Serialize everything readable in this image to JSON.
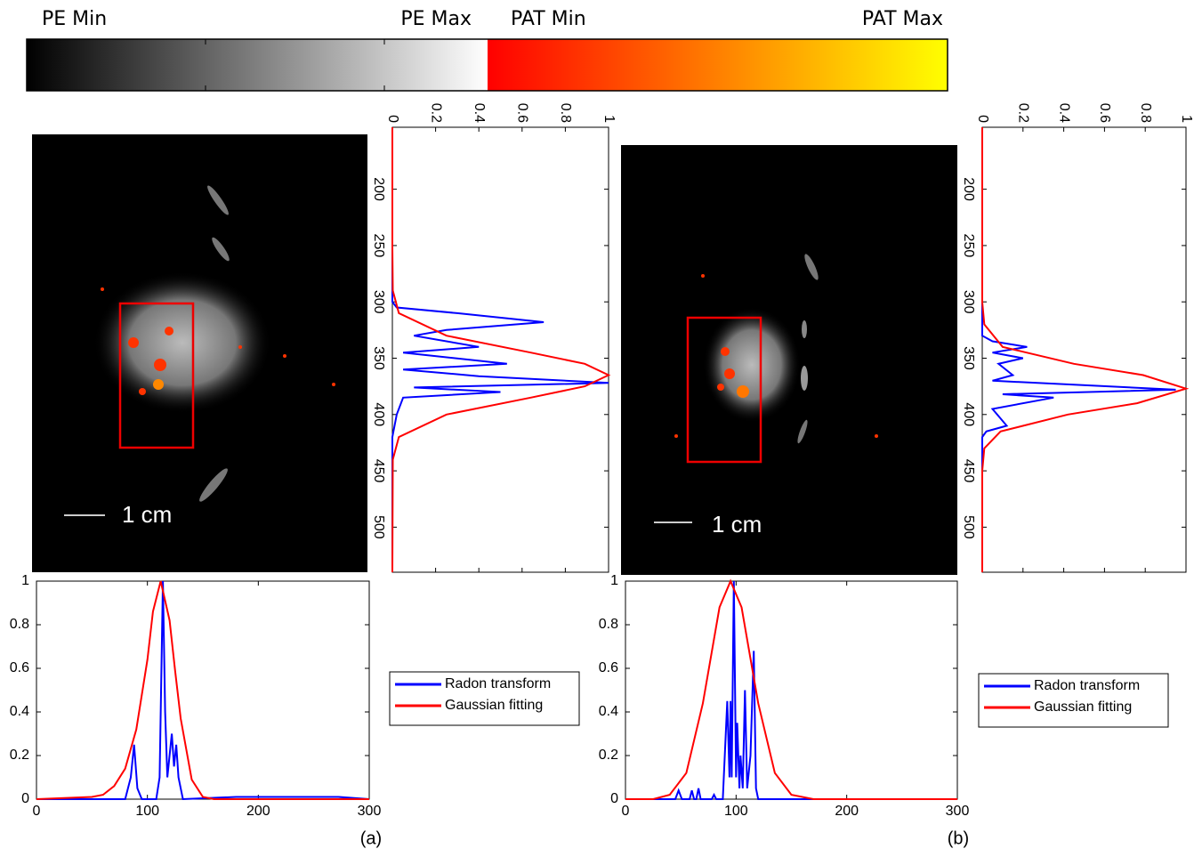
{
  "colorbar": {
    "pe_min": "PE Min",
    "pe_max": "PE Max",
    "pat_min": "PAT Min",
    "pat_max": "PAT Max"
  },
  "panels": [
    {
      "label": "(a)",
      "scale_bar": "1 cm"
    },
    {
      "label": "(b)",
      "scale_bar": "1 cm"
    }
  ],
  "chart_data": [
    {
      "type": "line",
      "xlim": [
        0,
        300
      ],
      "xticks": [
        0,
        100,
        200,
        300
      ],
      "ylim": [
        0,
        1
      ],
      "yticks": [
        0,
        0.2,
        0.4,
        0.6,
        0.8,
        1
      ],
      "legend": "right",
      "series": [
        {
          "name": "Radon transform",
          "color": "#0000ff",
          "x": [
            0,
            80,
            85,
            88,
            91,
            95,
            108,
            111,
            114,
            116,
            118,
            120,
            122,
            124,
            126,
            128,
            132,
            180,
            235,
            272,
            300
          ],
          "values": [
            0,
            0,
            0.1,
            0.25,
            0.05,
            0,
            0,
            0.1,
            1,
            0.4,
            0.1,
            0.2,
            0.3,
            0.15,
            0.25,
            0.1,
            0,
            0.01,
            0.01,
            0.01,
            0
          ]
        },
        {
          "name": "Gaussian fitting",
          "color": "#ff0000",
          "x": [
            0,
            50,
            60,
            70,
            80,
            90,
            100,
            105,
            112,
            120,
            125,
            130,
            140,
            150,
            160,
            180,
            300
          ],
          "values": [
            0,
            0.01,
            0.02,
            0.06,
            0.14,
            0.32,
            0.64,
            0.86,
            1,
            0.82,
            0.59,
            0.37,
            0.09,
            0.01,
            0,
            0,
            0
          ]
        }
      ]
    },
    {
      "type": "line",
      "orientation": "vertical",
      "xlim": [
        145,
        540
      ],
      "xticks": [
        200,
        250,
        300,
        350,
        400,
        450,
        500
      ],
      "ylim": [
        0,
        1
      ],
      "yticks": [
        0,
        0.2,
        0.4,
        0.6,
        0.8,
        1
      ],
      "series": [
        {
          "color": "#0000ff",
          "x": [
            145,
            300,
            305,
            310,
            318,
            325,
            330,
            340,
            345,
            355,
            360,
            366,
            372,
            376,
            380,
            385,
            400,
            420,
            540
          ],
          "values": [
            0,
            0,
            0.02,
            0.3,
            0.7,
            0.25,
            0.1,
            0.4,
            0.05,
            0.53,
            0.05,
            0.4,
            1,
            0.1,
            0.5,
            0.05,
            0.02,
            0,
            0
          ]
        },
        {
          "color": "#ff0000",
          "x": [
            145,
            250,
            290,
            310,
            330,
            345,
            355,
            365,
            375,
            385,
            400,
            420,
            440,
            540
          ],
          "values": [
            0,
            0,
            0.002,
            0.03,
            0.25,
            0.64,
            0.89,
            1,
            0.89,
            0.64,
            0.25,
            0.03,
            0.002,
            0
          ]
        }
      ]
    },
    {
      "type": "line",
      "xlim": [
        0,
        300
      ],
      "xticks": [
        0,
        100,
        200,
        300
      ],
      "ylim": [
        0,
        1
      ],
      "yticks": [
        0,
        0.2,
        0.4,
        0.6,
        0.8,
        1
      ],
      "legend": "right",
      "series": [
        {
          "name": "Radon transform",
          "color": "#0000ff",
          "x": [
            0,
            45,
            48,
            51,
            58,
            60,
            62,
            64,
            66,
            68,
            78,
            80,
            82,
            88,
            92,
            94,
            95,
            96,
            98,
            100,
            101,
            103,
            104,
            106,
            108,
            110,
            113,
            116,
            118,
            120,
            300
          ],
          "values": [
            0,
            0,
            0.04,
            0,
            0,
            0.04,
            0,
            0,
            0.05,
            0,
            0,
            0.02,
            0,
            0,
            0.45,
            0.1,
            0.45,
            0.1,
            1,
            0.1,
            0.35,
            0.05,
            0.2,
            0.05,
            0.5,
            0.05,
            0.2,
            0.68,
            0.05,
            0,
            0
          ]
        },
        {
          "name": "Gaussian fitting",
          "color": "#ff0000",
          "x": [
            0,
            25,
            40,
            55,
            70,
            85,
            95,
            105,
            120,
            135,
            150,
            170,
            200,
            300
          ],
          "values": [
            0,
            0,
            0.02,
            0.12,
            0.44,
            0.88,
            1,
            0.88,
            0.44,
            0.12,
            0.02,
            0,
            0,
            0
          ]
        }
      ]
    },
    {
      "type": "line",
      "orientation": "vertical",
      "xlim": [
        145,
        540
      ],
      "xticks": [
        200,
        250,
        300,
        350,
        400,
        450,
        500
      ],
      "ylim": [
        0,
        1
      ],
      "yticks": [
        0,
        0.2,
        0.4,
        0.6,
        0.8,
        1
      ],
      "series": [
        {
          "color": "#0000ff",
          "x": [
            145,
            330,
            335,
            340,
            345,
            350,
            355,
            365,
            370,
            378,
            382,
            385,
            395,
            410,
            415,
            420,
            540
          ],
          "values": [
            0,
            0,
            0.05,
            0.22,
            0.05,
            0.2,
            0.08,
            0.15,
            0.05,
            0.95,
            0.1,
            0.35,
            0.05,
            0.12,
            0.02,
            0,
            0
          ]
        },
        {
          "color": "#ff0000",
          "x": [
            145,
            300,
            320,
            340,
            355,
            365,
            377,
            390,
            400,
            415,
            430,
            450,
            540
          ],
          "values": [
            0,
            0,
            0.01,
            0.1,
            0.45,
            0.79,
            1,
            0.76,
            0.42,
            0.09,
            0.01,
            0,
            0
          ]
        }
      ]
    }
  ]
}
